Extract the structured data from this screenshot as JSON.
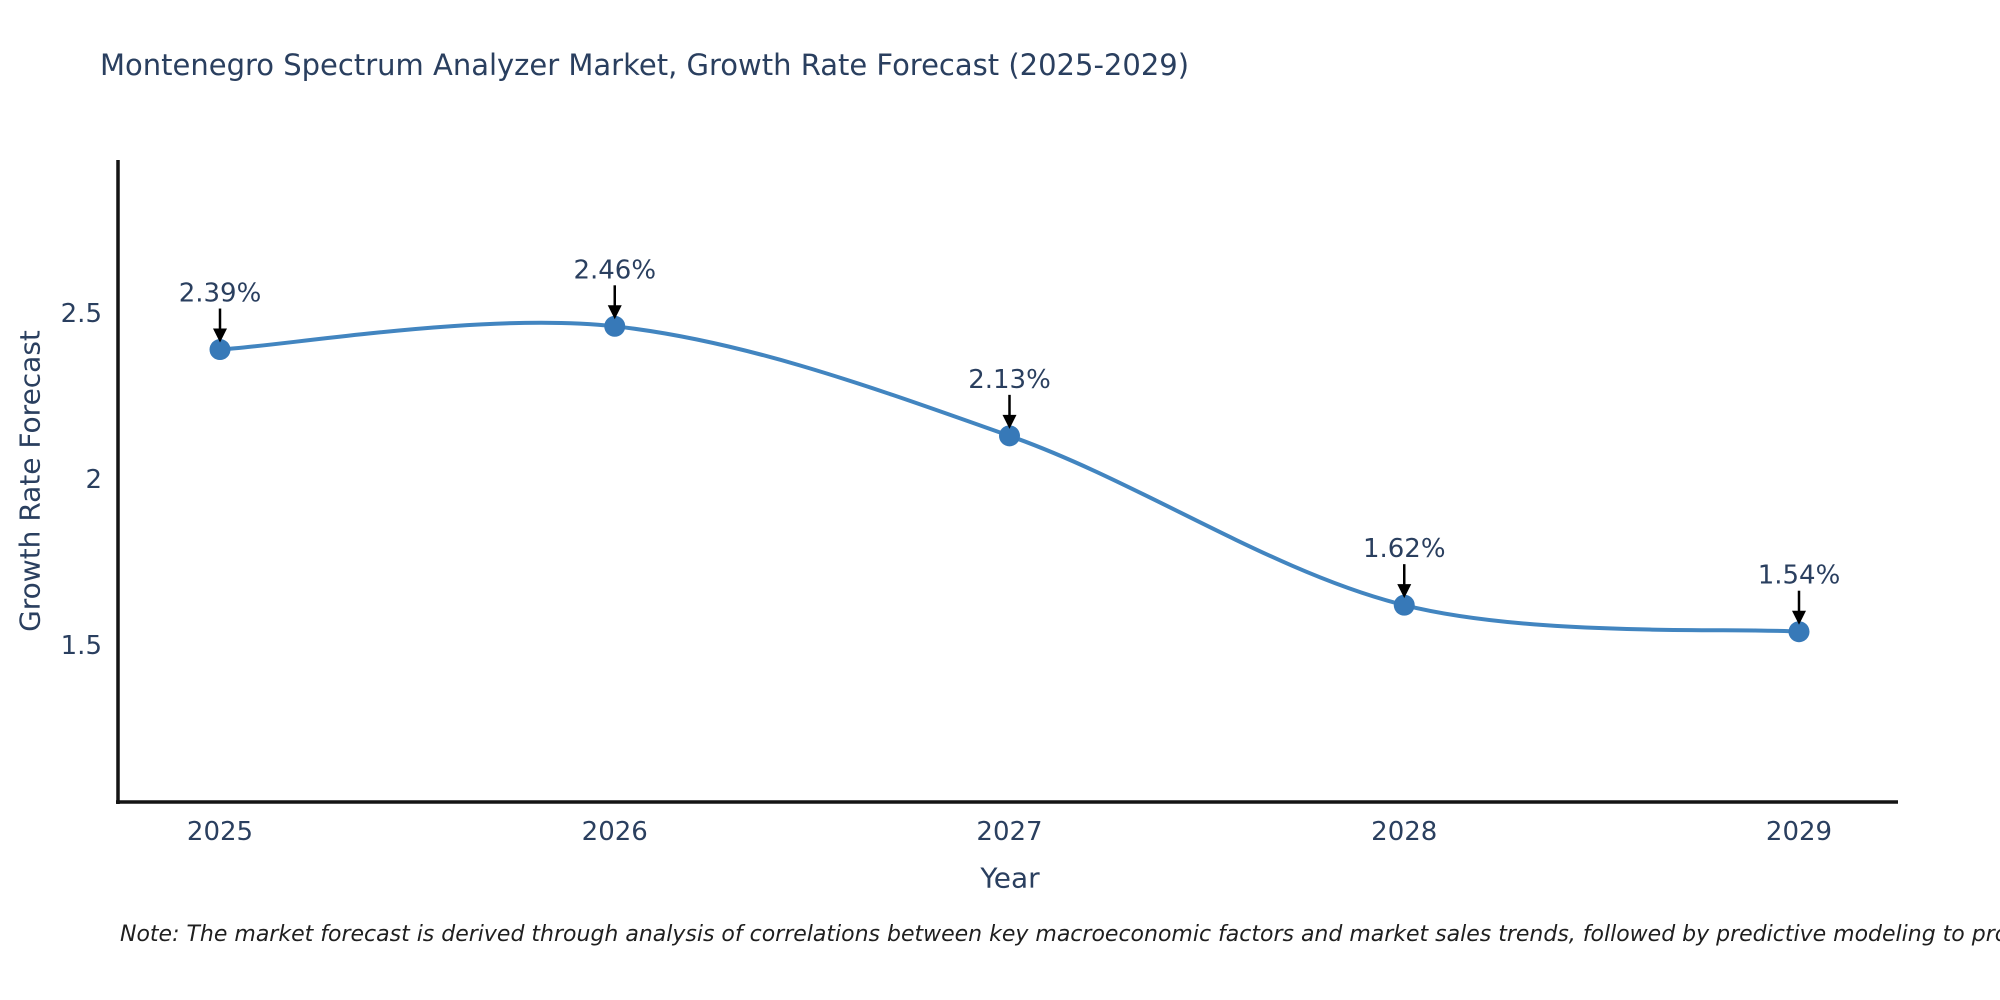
{
  "note": "Note: The market forecast is derived through analysis of correlations between key macroeconomic factors and market sales trends, followed by predictive modeling to project future sales",
  "chart_data": {
    "type": "line",
    "title": "Montenegro Spectrum Analyzer Market, Growth Rate Forecast (2025-2029)",
    "xlabel": "Year",
    "ylabel": "Growth Rate Forecast",
    "x": [
      2025,
      2026,
      2027,
      2028,
      2029
    ],
    "xtick_labels": [
      "2025",
      "2026",
      "2027",
      "2028",
      "2029"
    ],
    "values": [
      2.39,
      2.46,
      2.13,
      1.62,
      1.54
    ],
    "point_labels": [
      "2.39%",
      "2.46%",
      "2.13%",
      "1.62%",
      "1.54%"
    ],
    "yticks": [
      2.5,
      2,
      1.5
    ],
    "ytick_labels": [
      "2.5",
      "2",
      "1.5"
    ],
    "ylim": [
      1.027,
      2.961
    ],
    "line_shape": "spline",
    "grid": false,
    "legend": "none",
    "colors": {
      "line": "#4285c0",
      "marker": "#3779b8",
      "arrow": "#000000",
      "annotation": "#2a3f5f",
      "axis": "#141414",
      "tick": "#2a3f5f",
      "title": "#2a3f5f"
    }
  }
}
